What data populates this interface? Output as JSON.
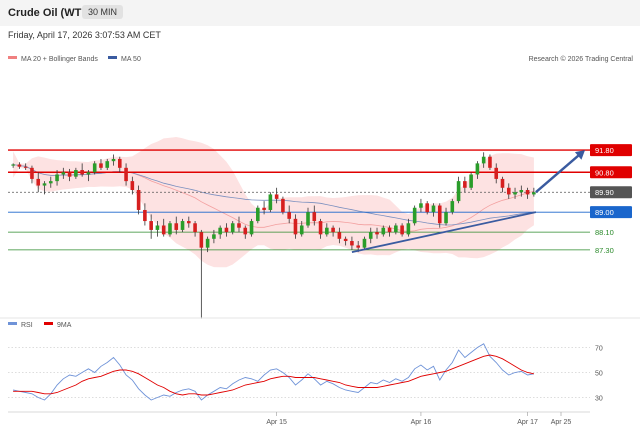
{
  "header": {
    "title": "Crude Oil (WTI)",
    "timeframe": "30 MIN",
    "datetime": "Friday, April 17, 2026 3:07:53 AM CET"
  },
  "chart_data": [
    {
      "type": "candlestick",
      "legend": [
        "MA 20 + Bollinger Bands",
        "MA 50"
      ],
      "legend_colors": [
        "#f08080",
        "#3a5ba0"
      ],
      "watermark": "Research © 2026 Trading Central",
      "levels": [
        {
          "value": 91.8,
          "label": "91.80",
          "kind": "resistance",
          "color": "#e00000"
        },
        {
          "value": 90.8,
          "label": "90.80",
          "kind": "resistance",
          "color": "#e00000"
        },
        {
          "value": 89.9,
          "label": "89.90",
          "kind": "last",
          "color": "#555555"
        },
        {
          "value": 89.0,
          "label": "89.00",
          "kind": "pivot",
          "color": "#1a66cc"
        },
        {
          "value": 88.1,
          "label": "88.10",
          "kind": "support",
          "color": "#2a8a2a"
        },
        {
          "value": 87.3,
          "label": "87.30",
          "kind": "support",
          "color": "#2a8a2a"
        }
      ],
      "ylim": [
        84.5,
        95.5
      ],
      "x_ticks": [
        "Apr 15",
        "Apr 16",
        "Apr 17",
        "Apr 25"
      ],
      "candles": [
        [
          91.1,
          91.2,
          91.0,
          91.15
        ],
        [
          91.15,
          91.25,
          90.95,
          91.05
        ],
        [
          91.05,
          91.2,
          90.9,
          91.0
        ],
        [
          91.0,
          91.1,
          90.3,
          90.5
        ],
        [
          90.5,
          90.8,
          89.9,
          90.2
        ],
        [
          90.2,
          90.4,
          89.8,
          90.3
        ],
        [
          90.3,
          90.6,
          90.1,
          90.4
        ],
        [
          90.4,
          90.9,
          90.2,
          90.7
        ],
        [
          90.7,
          91.0,
          90.5,
          90.8
        ],
        [
          90.8,
          90.95,
          90.4,
          90.6
        ],
        [
          90.6,
          91.0,
          90.5,
          90.9
        ],
        [
          90.9,
          91.2,
          90.6,
          90.7
        ],
        [
          90.7,
          90.9,
          90.4,
          90.8
        ],
        [
          90.8,
          91.3,
          90.7,
          91.2
        ],
        [
          91.2,
          91.4,
          90.9,
          91.0
        ],
        [
          91.0,
          91.4,
          90.9,
          91.3
        ],
        [
          91.3,
          91.6,
          91.1,
          91.4
        ],
        [
          91.4,
          91.5,
          90.8,
          91.0
        ],
        [
          91.0,
          91.2,
          90.2,
          90.4
        ],
        [
          90.4,
          90.6,
          89.8,
          90.0
        ],
        [
          90.0,
          90.2,
          88.9,
          89.1
        ],
        [
          89.1,
          89.4,
          88.4,
          88.6
        ],
        [
          88.6,
          88.9,
          87.8,
          88.2
        ],
        [
          88.2,
          88.6,
          87.9,
          88.4
        ],
        [
          88.4,
          88.7,
          87.9,
          88.0
        ],
        [
          88.0,
          88.6,
          87.9,
          88.5
        ],
        [
          88.5,
          88.8,
          88.0,
          88.2
        ],
        [
          88.2,
          88.7,
          88.1,
          88.6
        ],
        [
          88.6,
          88.8,
          88.3,
          88.5
        ],
        [
          88.5,
          88.6,
          87.9,
          88.1
        ],
        [
          88.1,
          88.2,
          84.2,
          87.4
        ],
        [
          87.4,
          87.9,
          87.2,
          87.8
        ],
        [
          87.8,
          88.2,
          87.6,
          88.0
        ],
        [
          88.0,
          88.4,
          87.8,
          88.3
        ],
        [
          88.3,
          88.5,
          87.9,
          88.1
        ],
        [
          88.1,
          88.6,
          88.0,
          88.5
        ],
        [
          88.5,
          88.8,
          88.1,
          88.3
        ],
        [
          88.3,
          88.4,
          87.8,
          88.0
        ],
        [
          88.0,
          88.7,
          87.9,
          88.6
        ],
        [
          88.6,
          89.3,
          88.5,
          89.2
        ],
        [
          89.2,
          89.5,
          88.9,
          89.1
        ],
        [
          89.1,
          89.9,
          89.0,
          89.8
        ],
        [
          89.8,
          90.1,
          89.4,
          89.6
        ],
        [
          89.6,
          89.7,
          88.9,
          89.0
        ],
        [
          89.0,
          89.3,
          88.5,
          88.7
        ],
        [
          88.7,
          88.9,
          87.8,
          88.0
        ],
        [
          88.0,
          88.6,
          87.9,
          88.4
        ],
        [
          88.4,
          89.2,
          88.3,
          89.0
        ],
        [
          89.0,
          89.3,
          88.4,
          88.6
        ],
        [
          88.6,
          88.7,
          87.8,
          88.0
        ],
        [
          88.0,
          88.5,
          87.9,
          88.3
        ],
        [
          88.3,
          88.4,
          87.9,
          88.1
        ],
        [
          88.1,
          88.3,
          87.6,
          87.8
        ],
        [
          87.8,
          87.9,
          87.5,
          87.7
        ],
        [
          87.7,
          87.9,
          87.3,
          87.5
        ],
        [
          87.5,
          87.7,
          87.2,
          87.4
        ],
        [
          87.4,
          87.9,
          87.3,
          87.8
        ],
        [
          87.8,
          88.3,
          87.6,
          88.1
        ],
        [
          88.1,
          88.3,
          87.8,
          88.0
        ],
        [
          88.0,
          88.4,
          87.9,
          88.3
        ],
        [
          88.3,
          88.4,
          87.9,
          88.1
        ],
        [
          88.1,
          88.5,
          88.0,
          88.4
        ],
        [
          88.4,
          88.5,
          87.9,
          88.0
        ],
        [
          88.0,
          88.7,
          87.9,
          88.5
        ],
        [
          88.5,
          89.3,
          88.4,
          89.2
        ],
        [
          89.2,
          89.6,
          89.0,
          89.4
        ],
        [
          89.4,
          89.5,
          88.9,
          89.0
        ],
        [
          89.0,
          89.4,
          88.8,
          89.3
        ],
        [
          89.3,
          89.4,
          88.3,
          88.5
        ],
        [
          88.5,
          89.2,
          88.4,
          89.0
        ],
        [
          89.0,
          89.6,
          88.9,
          89.5
        ],
        [
          89.5,
          90.6,
          89.4,
          90.4
        ],
        [
          90.4,
          90.6,
          89.9,
          90.1
        ],
        [
          90.1,
          90.8,
          90.0,
          90.7
        ],
        [
          90.7,
          91.3,
          90.5,
          91.2
        ],
        [
          91.2,
          91.7,
          91.0,
          91.5
        ],
        [
          91.5,
          91.6,
          90.9,
          91.0
        ],
        [
          91.0,
          91.2,
          90.3,
          90.5
        ],
        [
          90.5,
          90.6,
          89.9,
          90.1
        ],
        [
          90.1,
          90.3,
          89.6,
          89.8
        ],
        [
          89.8,
          90.1,
          89.6,
          89.9
        ],
        [
          89.9,
          90.2,
          89.7,
          90.0
        ],
        [
          90.0,
          90.1,
          89.6,
          89.8
        ],
        [
          89.8,
          90.1,
          89.7,
          89.9
        ]
      ],
      "projection": {
        "from": 89.9,
        "to": 91.8
      }
    },
    {
      "type": "line",
      "legend": [
        "RSI",
        "9MA"
      ],
      "legend_colors": [
        "#6f93d8",
        "#e00000"
      ],
      "ylim": [
        20,
        80
      ],
      "y_ticks": [
        30,
        50,
        70
      ],
      "series": [
        {
          "name": "RSI",
          "values": [
            36,
            35,
            34,
            33,
            30,
            28,
            33,
            40,
            45,
            48,
            47,
            50,
            53,
            50,
            55,
            58,
            62,
            56,
            48,
            44,
            37,
            32,
            28,
            30,
            32,
            31,
            34,
            36,
            37,
            35,
            28,
            32,
            35,
            38,
            37,
            41,
            44,
            46,
            45,
            43,
            48,
            52,
            53,
            50,
            46,
            40,
            44,
            49,
            45,
            40,
            43,
            41,
            38,
            36,
            35,
            34,
            38,
            42,
            41,
            44,
            42,
            45,
            43,
            46,
            53,
            56,
            52,
            55,
            44,
            52,
            58,
            68,
            62,
            66,
            70,
            73,
            63,
            58,
            52,
            48,
            50,
            51,
            48,
            49
          ]
        },
        {
          "name": "9MA",
          "values": [
            35,
            35,
            35,
            35,
            34,
            33,
            33,
            34,
            36,
            38,
            40,
            43,
            45,
            46,
            47,
            49,
            51,
            52,
            52,
            51,
            49,
            46,
            43,
            40,
            38,
            35,
            33,
            32,
            33,
            33,
            32,
            32,
            33,
            34,
            35,
            36,
            38,
            40,
            41,
            42,
            43,
            45,
            46,
            47,
            47,
            46,
            46,
            46,
            46,
            45,
            44,
            43,
            42,
            40,
            39,
            38,
            38,
            38,
            38,
            39,
            40,
            41,
            42,
            43,
            45,
            47,
            48,
            49,
            50,
            51,
            53,
            55,
            57,
            59,
            61,
            63,
            64,
            63,
            61,
            58,
            55,
            52,
            50,
            49
          ]
        }
      ]
    }
  ]
}
